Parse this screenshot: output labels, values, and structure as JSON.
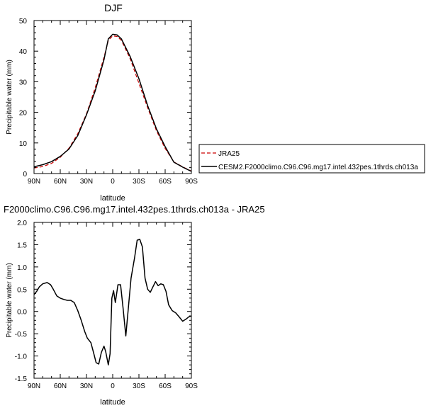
{
  "chart_data": [
    {
      "type": "line",
      "title": "DJF",
      "xlabel": "latitude",
      "ylabel": "Precipitable water (mm)",
      "xlim": [
        -90,
        90
      ],
      "ylim": [
        0,
        50
      ],
      "x_ticks": [
        {
          "value": -90,
          "label": "90N"
        },
        {
          "value": -60,
          "label": "60N"
        },
        {
          "value": -30,
          "label": "30N"
        },
        {
          "value": 0,
          "label": "0"
        },
        {
          "value": 30,
          "label": "30S"
        },
        {
          "value": 60,
          "label": "60S"
        },
        {
          "value": 90,
          "label": "90S"
        }
      ],
      "y_ticks": [
        0,
        10,
        20,
        30,
        40,
        50
      ],
      "legend": "outside-right",
      "series": [
        {
          "name": "JRA25",
          "color": "#cc0000",
          "dash": "dashed",
          "x": [
            -90,
            -80,
            -70,
            -60,
            -50,
            -40,
            -30,
            -20,
            -10,
            -5,
            0,
            5,
            10,
            20,
            30,
            40,
            50,
            60,
            70,
            80,
            90
          ],
          "y": [
            1.8,
            2.3,
            3.3,
            5.3,
            8.3,
            13.0,
            19.5,
            28.0,
            38.0,
            43.5,
            45.0,
            44.8,
            43.5,
            37.5,
            29.5,
            21.5,
            14.0,
            8.2,
            3.8,
            2.2,
            0.8
          ]
        },
        {
          "name": "CESM2.F2000climo.C96.C96.mg17.intel.432pes.1thrds.ch013a",
          "color": "#000000",
          "dash": "solid",
          "x": [
            -90,
            -80,
            -70,
            -60,
            -50,
            -40,
            -30,
            -20,
            -10,
            -5,
            0,
            5,
            10,
            20,
            30,
            40,
            50,
            60,
            70,
            80,
            90
          ],
          "y": [
            2.2,
            2.9,
            3.9,
            5.6,
            8.0,
            12.4,
            19.2,
            27.0,
            37.2,
            44.0,
            45.5,
            45.3,
            44.0,
            38.2,
            31.0,
            22.2,
            14.6,
            8.8,
            3.7,
            2.1,
            0.7
          ]
        }
      ]
    },
    {
      "type": "line",
      "title": "F2000climo.C96.C96.mg17.intel.432pes.1thrds.ch013a - JRA25",
      "xlabel": "latitude",
      "ylabel": "Precipitable water (mm)",
      "xlim": [
        -90,
        90
      ],
      "ylim": [
        -1.5,
        2.0
      ],
      "x_ticks": [
        {
          "value": -90,
          "label": "90N"
        },
        {
          "value": -60,
          "label": "60N"
        },
        {
          "value": -30,
          "label": "30N"
        },
        {
          "value": 0,
          "label": "0"
        },
        {
          "value": 30,
          "label": "30S"
        },
        {
          "value": 60,
          "label": "60S"
        },
        {
          "value": 90,
          "label": "90S"
        }
      ],
      "y_ticks": [
        -1.5,
        -1.0,
        -0.5,
        0.0,
        0.5,
        1.0,
        1.5,
        2.0
      ],
      "y_tick_labels": [
        "-1.5",
        "-1.0",
        "-0.5",
        "0.0",
        "0.5",
        "1.0",
        "1.5",
        "2.0"
      ],
      "series": [
        {
          "color": "#000000",
          "dash": "solid",
          "x": [
            -90,
            -87,
            -84,
            -80,
            -75,
            -71,
            -68,
            -64,
            -60,
            -56,
            -52,
            -48,
            -44,
            -40,
            -36,
            -32,
            -29,
            -25,
            -22,
            -19,
            -16,
            -13,
            -10,
            -8,
            -5,
            -3,
            -1,
            1,
            3,
            6,
            9,
            12,
            15,
            18,
            21,
            25,
            28,
            31,
            34,
            37,
            40,
            43,
            46,
            49,
            52,
            55,
            58,
            61,
            64,
            68,
            72,
            76,
            80,
            84,
            87,
            90
          ],
          "y": [
            0.38,
            0.45,
            0.55,
            0.62,
            0.65,
            0.6,
            0.5,
            0.35,
            0.3,
            0.27,
            0.25,
            0.25,
            0.2,
            0.02,
            -0.2,
            -0.45,
            -0.6,
            -0.7,
            -0.92,
            -1.15,
            -1.18,
            -0.92,
            -0.78,
            -0.9,
            -1.2,
            -0.95,
            0.3,
            0.47,
            0.2,
            0.6,
            0.6,
            0.05,
            -0.55,
            0.1,
            0.75,
            1.2,
            1.6,
            1.62,
            1.45,
            0.75,
            0.5,
            0.43,
            0.55,
            0.67,
            0.58,
            0.62,
            0.6,
            0.45,
            0.15,
            0.02,
            -0.03,
            -0.12,
            -0.22,
            -0.17,
            -0.12,
            -0.1
          ]
        }
      ]
    }
  ]
}
